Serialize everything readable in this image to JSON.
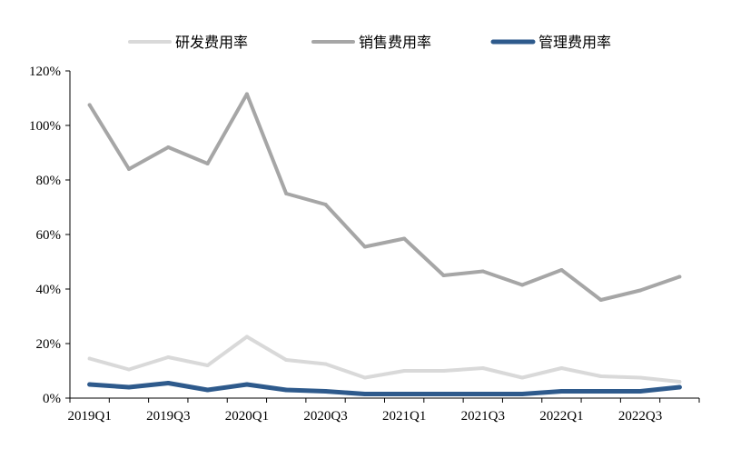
{
  "chart_data": {
    "type": "line",
    "title": "",
    "xlabel": "",
    "ylabel": "",
    "x": [
      "2019Q1",
      "2019Q2",
      "2019Q3",
      "2019Q4",
      "2020Q1",
      "2020Q2",
      "2020Q3",
      "2020Q4",
      "2021Q1",
      "2021Q2",
      "2021Q3",
      "2021Q4",
      "2022Q1",
      "2022Q2",
      "2022Q3",
      "2022Q4"
    ],
    "x_tick_labels": [
      "2019Q1",
      "2019Q3",
      "2020Q1",
      "2020Q3",
      "2021Q1",
      "2021Q3",
      "2022Q1",
      "2022Q3"
    ],
    "y_tick_labels": [
      "0%",
      "20%",
      "40%",
      "60%",
      "80%",
      "100%",
      "120%"
    ],
    "y_ticks": [
      0,
      20,
      40,
      60,
      80,
      100,
      120
    ],
    "ylim": [
      0,
      120
    ],
    "y_unit": "%",
    "grid": false,
    "legend_position": "top",
    "series": [
      {
        "name": "研发费用率",
        "color": "#d9d9d9",
        "values": [
          14.5,
          10.5,
          15.0,
          12.0,
          22.5,
          14.0,
          12.5,
          7.5,
          10.0,
          10.0,
          11.0,
          7.5,
          11.0,
          8.0,
          7.5,
          6.0
        ]
      },
      {
        "name": "销售费用率",
        "color": "#a6a6a6",
        "values": [
          107.5,
          84.0,
          92.0,
          86.0,
          111.5,
          75.0,
          71.0,
          55.5,
          58.5,
          45.0,
          46.5,
          41.5,
          47.0,
          36.0,
          39.5,
          44.5
        ]
      },
      {
        "name": "管理费用率",
        "color": "#2e5a8c",
        "values": [
          5.0,
          4.0,
          5.5,
          3.0,
          5.0,
          3.0,
          2.5,
          1.5,
          1.5,
          1.5,
          1.5,
          1.5,
          2.5,
          2.5,
          2.5,
          4.0
        ]
      }
    ]
  }
}
